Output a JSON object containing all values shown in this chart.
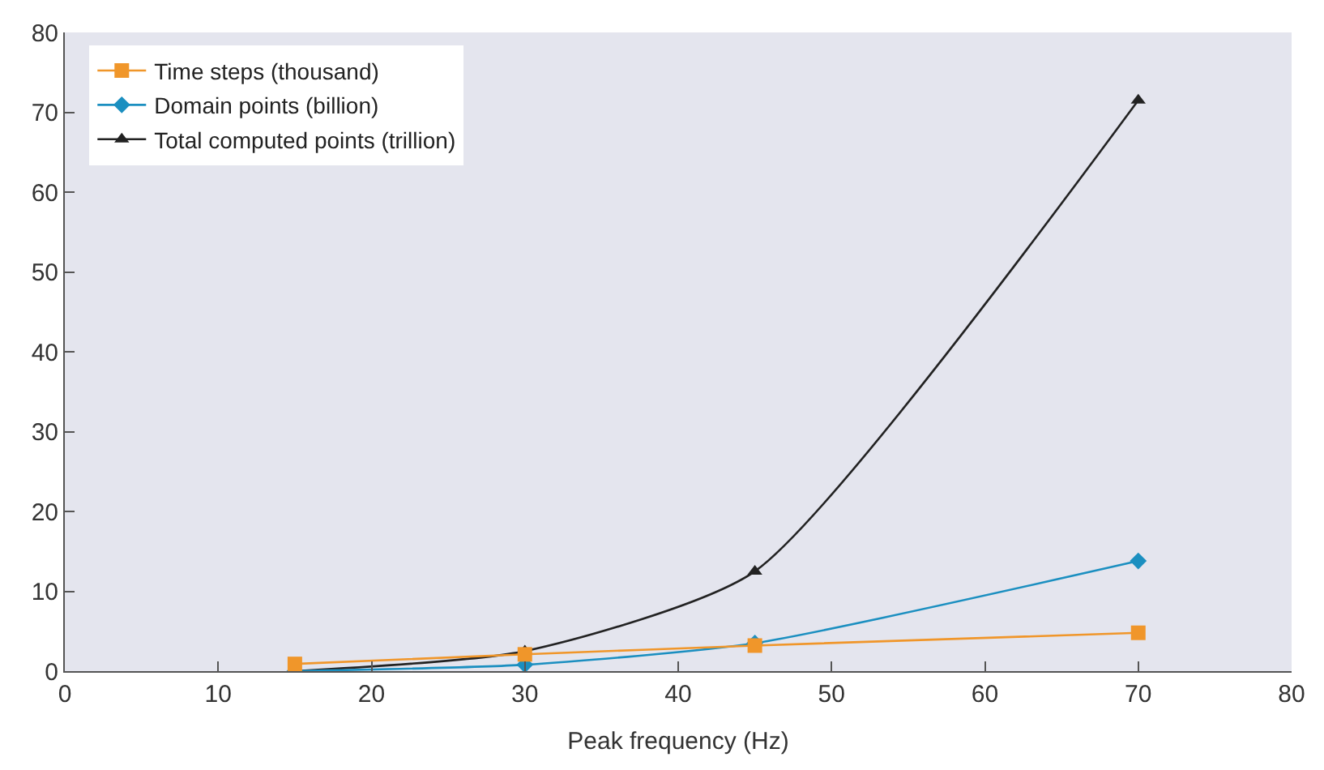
{
  "chart_data": {
    "type": "line",
    "xlabel": "Peak frequency (Hz)",
    "x": [
      15,
      30,
      45,
      70
    ],
    "xlim": [
      0,
      80
    ],
    "xticks": [
      0,
      10,
      20,
      30,
      40,
      50,
      60,
      70,
      80
    ],
    "ylim": [
      0,
      80
    ],
    "yticks": [
      0,
      10,
      20,
      30,
      40,
      50,
      60,
      70,
      80
    ],
    "grid": false,
    "legend": "top left",
    "series": [
      {
        "name": "Time steps (thousand)",
        "color": "#f0962a",
        "marker": "square",
        "values": [
          0.9,
          2.1,
          3.2,
          4.8
        ]
      },
      {
        "name": "Domain points (billion)",
        "color": "#1b8fc0",
        "marker": "diamond",
        "values": [
          0,
          0.8,
          3.5,
          13.8
        ]
      },
      {
        "name": "Total computed points (trillion)",
        "color": "#222222",
        "marker": "triangle",
        "values": [
          0,
          2.5,
          12.5,
          71.5
        ]
      }
    ]
  }
}
